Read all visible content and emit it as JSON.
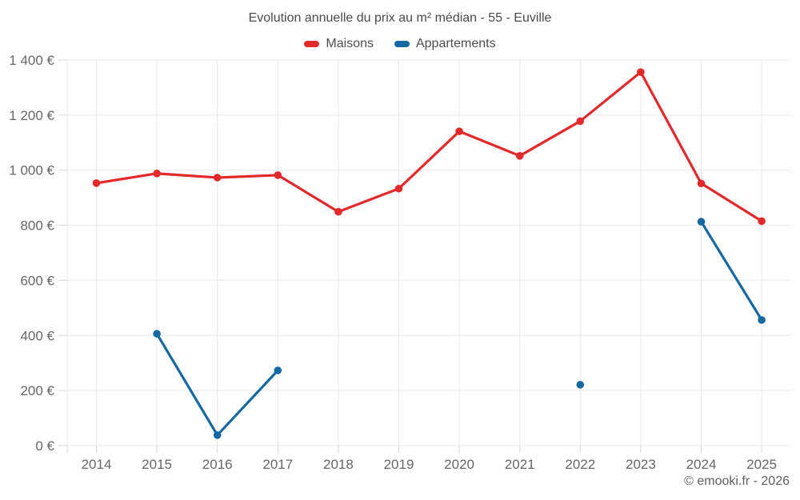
{
  "chart_data": {
    "type": "line",
    "title": "Evolution annuelle du prix au m² médian - 55 - Euville",
    "categories": [
      "2014",
      "2015",
      "2016",
      "2017",
      "2018",
      "2019",
      "2020",
      "2021",
      "2022",
      "2023",
      "2024",
      "2025"
    ],
    "series": [
      {
        "name": "Maisons",
        "color": "#e22a2d",
        "values": [
          953,
          988,
          973,
          982,
          849,
          933,
          1141,
          1052,
          1178,
          1356,
          952,
          815
        ]
      },
      {
        "name": "Appartements",
        "color": "#1569a0",
        "values": [
          null,
          406,
          38,
          273,
          null,
          null,
          null,
          null,
          221,
          null,
          813,
          456
        ]
      }
    ],
    "xlabel": "",
    "ylabel": "",
    "ylim": [
      0,
      1400
    ],
    "ytick_step": 200,
    "ytick_labels": [
      "0 €",
      "200 €",
      "400 €",
      "600 €",
      "800 €",
      "1 000 €",
      "1 200 €",
      "1 400 €"
    ],
    "grid": true,
    "legend_position": "top"
  },
  "footer": {
    "credit": "© emooki.fr - 2026"
  },
  "colors": {
    "grid": "#e8e8e8",
    "tick": "#d6d6d6",
    "axis_label": "#666666",
    "title": "#4a4a4a",
    "legend_label": "#4d4d4d",
    "credit": "#5e5e5e"
  }
}
